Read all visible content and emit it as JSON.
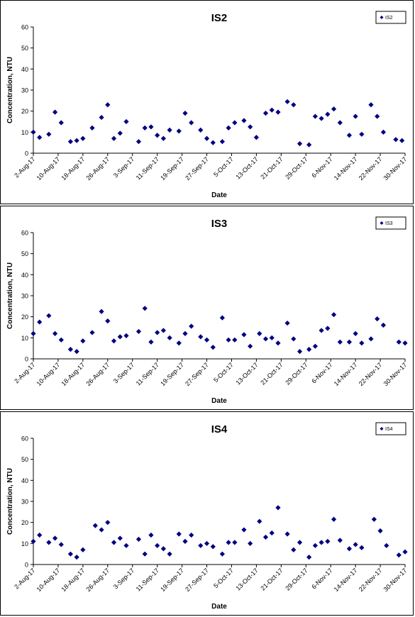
{
  "chart_data": [
    {
      "type": "scatter",
      "title": "IS2",
      "xlabel": "Date",
      "ylabel": "Concentration, NTU",
      "ylim": [
        0,
        60
      ],
      "yticks": [
        "0",
        "10",
        "20",
        "30",
        "40",
        "50",
        "60"
      ],
      "x_tick_labels": [
        "2-Aug-17",
        "10-Aug-17",
        "18-Aug-17",
        "26-Aug-17",
        "3-Sep-17",
        "11-Sep-17",
        "19-Sep-17",
        "27-Sep-17",
        "5-Oct-17",
        "13-Oct-17",
        "21-Oct-17",
        "29-Oct-17",
        "6-Nov-17",
        "14-Nov-17",
        "22-Nov-17",
        "30-Nov-17"
      ],
      "legend_position": "top-right",
      "grid": false,
      "marker": "diamond",
      "color": "#000080",
      "series": [
        {
          "name": "IS2",
          "points": [
            {
              "x": "2-Aug-17",
              "y": 10
            },
            {
              "x": "4-Aug-17",
              "y": 7.5
            },
            {
              "x": "7-Aug-17",
              "y": 9
            },
            {
              "x": "9-Aug-17",
              "y": 19.5
            },
            {
              "x": "11-Aug-17",
              "y": 14.5
            },
            {
              "x": "14-Aug-17",
              "y": 5.5
            },
            {
              "x": "16-Aug-17",
              "y": 6
            },
            {
              "x": "18-Aug-17",
              "y": 7
            },
            {
              "x": "21-Aug-17",
              "y": 12
            },
            {
              "x": "24-Aug-17",
              "y": 17
            },
            {
              "x": "26-Aug-17",
              "y": 23
            },
            {
              "x": "28-Aug-17",
              "y": 7
            },
            {
              "x": "30-Aug-17",
              "y": 9.5
            },
            {
              "x": "1-Sep-17",
              "y": 15
            },
            {
              "x": "5-Sep-17",
              "y": 5.5
            },
            {
              "x": "7-Sep-17",
              "y": 12
            },
            {
              "x": "9-Sep-17",
              "y": 12.5
            },
            {
              "x": "11-Sep-17",
              "y": 8.5
            },
            {
              "x": "13-Sep-17",
              "y": 7
            },
            {
              "x": "15-Sep-17",
              "y": 11
            },
            {
              "x": "18-Sep-17",
              "y": 10.5
            },
            {
              "x": "20-Sep-17",
              "y": 19
            },
            {
              "x": "22-Sep-17",
              "y": 14.5
            },
            {
              "x": "25-Sep-17",
              "y": 11
            },
            {
              "x": "27-Sep-17",
              "y": 7
            },
            {
              "x": "29-Sep-17",
              "y": 5
            },
            {
              "x": "2-Oct-17",
              "y": 5.5
            },
            {
              "x": "4-Oct-17",
              "y": 12
            },
            {
              "x": "6-Oct-17",
              "y": 14.5
            },
            {
              "x": "9-Oct-17",
              "y": 15.5
            },
            {
              "x": "11-Oct-17",
              "y": 12.5
            },
            {
              "x": "13-Oct-17",
              "y": 7.5
            },
            {
              "x": "16-Oct-17",
              "y": 19
            },
            {
              "x": "18-Oct-17",
              "y": 20.5
            },
            {
              "x": "20-Oct-17",
              "y": 19.5
            },
            {
              "x": "23-Oct-17",
              "y": 24.5
            },
            {
              "x": "25-Oct-17",
              "y": 23
            },
            {
              "x": "27-Oct-17",
              "y": 4.5
            },
            {
              "x": "30-Oct-17",
              "y": 4
            },
            {
              "x": "1-Nov-17",
              "y": 17.5
            },
            {
              "x": "3-Nov-17",
              "y": 16.5
            },
            {
              "x": "5-Nov-17",
              "y": 18.5
            },
            {
              "x": "7-Nov-17",
              "y": 21
            },
            {
              "x": "9-Nov-17",
              "y": 14.5
            },
            {
              "x": "12-Nov-17",
              "y": 8.5
            },
            {
              "x": "14-Nov-17",
              "y": 17.5
            },
            {
              "x": "16-Nov-17",
              "y": 9
            },
            {
              "x": "19-Nov-17",
              "y": 23
            },
            {
              "x": "21-Nov-17",
              "y": 17.5
            },
            {
              "x": "23-Nov-17",
              "y": 10
            },
            {
              "x": "27-Nov-17",
              "y": 6.5
            },
            {
              "x": "29-Nov-17",
              "y": 6
            }
          ]
        }
      ]
    },
    {
      "type": "scatter",
      "title": "IS3",
      "xlabel": "Date",
      "ylabel": "Concentration, NTU",
      "ylim": [
        0,
        60
      ],
      "yticks": [
        "0",
        "10",
        "20",
        "30",
        "40",
        "50",
        "60"
      ],
      "x_tick_labels": [
        "2-Aug-17",
        "10-Aug-17",
        "18-Aug-17",
        "26-Aug-17",
        "3-Sep-17",
        "11-Sep-17",
        "19-Sep-17",
        "27-Sep-17",
        "5-Oct-17",
        "13-Oct-17",
        "21-Oct-17",
        "29-Oct-17",
        "6-Nov-17",
        "14-Nov-17",
        "22-Nov-17",
        "30-Nov-17"
      ],
      "legend_position": "top-right",
      "grid": false,
      "marker": "diamond",
      "color": "#000080",
      "series": [
        {
          "name": "IS3",
          "points": [
            {
              "x": "2-Aug-17",
              "y": 12
            },
            {
              "x": "4-Aug-17",
              "y": 17.5
            },
            {
              "x": "7-Aug-17",
              "y": 20.5
            },
            {
              "x": "9-Aug-17",
              "y": 12
            },
            {
              "x": "11-Aug-17",
              "y": 9
            },
            {
              "x": "14-Aug-17",
              "y": 4.5
            },
            {
              "x": "16-Aug-17",
              "y": 3.5
            },
            {
              "x": "18-Aug-17",
              "y": 8.5
            },
            {
              "x": "21-Aug-17",
              "y": 12.5
            },
            {
              "x": "24-Aug-17",
              "y": 22.5
            },
            {
              "x": "26-Aug-17",
              "y": 18
            },
            {
              "x": "28-Aug-17",
              "y": 8.5
            },
            {
              "x": "30-Aug-17",
              "y": 10.5
            },
            {
              "x": "1-Sep-17",
              "y": 11
            },
            {
              "x": "5-Sep-17",
              "y": 13
            },
            {
              "x": "7-Sep-17",
              "y": 24
            },
            {
              "x": "9-Sep-17",
              "y": 8
            },
            {
              "x": "11-Sep-17",
              "y": 12.5
            },
            {
              "x": "13-Sep-17",
              "y": 13.5
            },
            {
              "x": "15-Sep-17",
              "y": 10
            },
            {
              "x": "18-Sep-17",
              "y": 7.5
            },
            {
              "x": "20-Sep-17",
              "y": 12
            },
            {
              "x": "22-Sep-17",
              "y": 15.5
            },
            {
              "x": "25-Sep-17",
              "y": 10.5
            },
            {
              "x": "27-Sep-17",
              "y": 9
            },
            {
              "x": "29-Sep-17",
              "y": 5.5
            },
            {
              "x": "2-Oct-17",
              "y": 19.5
            },
            {
              "x": "4-Oct-17",
              "y": 9
            },
            {
              "x": "6-Oct-17",
              "y": 9
            },
            {
              "x": "9-Oct-17",
              "y": 11.5
            },
            {
              "x": "11-Oct-17",
              "y": 6
            },
            {
              "x": "14-Oct-17",
              "y": 12
            },
            {
              "x": "16-Oct-17",
              "y": 9.5
            },
            {
              "x": "18-Oct-17",
              "y": 10
            },
            {
              "x": "20-Oct-17",
              "y": 7.5
            },
            {
              "x": "23-Oct-17",
              "y": 17
            },
            {
              "x": "25-Oct-17",
              "y": 9.5
            },
            {
              "x": "27-Oct-17",
              "y": 3.5
            },
            {
              "x": "30-Oct-17",
              "y": 4.5
            },
            {
              "x": "1-Nov-17",
              "y": 6
            },
            {
              "x": "3-Nov-17",
              "y": 13.5
            },
            {
              "x": "5-Nov-17",
              "y": 14.5
            },
            {
              "x": "7-Nov-17",
              "y": 21
            },
            {
              "x": "9-Nov-17",
              "y": 8
            },
            {
              "x": "12-Nov-17",
              "y": 8
            },
            {
              "x": "14-Nov-17",
              "y": 12
            },
            {
              "x": "16-Nov-17",
              "y": 7.5
            },
            {
              "x": "19-Nov-17",
              "y": 9.5
            },
            {
              "x": "21-Nov-17",
              "y": 19
            },
            {
              "x": "23-Nov-17",
              "y": 16
            },
            {
              "x": "28-Nov-17",
              "y": 8
            },
            {
              "x": "30-Nov-17",
              "y": 7.5
            }
          ]
        }
      ]
    },
    {
      "type": "scatter",
      "title": "IS4",
      "xlabel": "Date",
      "ylabel": "Concentration, NTU",
      "ylim": [
        0,
        60
      ],
      "yticks": [
        "0",
        "10",
        "20",
        "30",
        "40",
        "50",
        "60"
      ],
      "x_tick_labels": [
        "2-Aug-17",
        "10-Aug-17",
        "18-Aug-17",
        "26-Aug-17",
        "3-Sep-17",
        "11-Sep-17",
        "19-Sep-17",
        "27-Sep-17",
        "5-Oct-17",
        "13-Oct-17",
        "21-Oct-17",
        "29-Oct-17",
        "6-Nov-17",
        "14-Nov-17",
        "22-Nov-17",
        "30-Nov-17"
      ],
      "legend_position": "top-right",
      "grid": false,
      "marker": "diamond",
      "color": "#000080",
      "series": [
        {
          "name": "IS4",
          "points": [
            {
              "x": "2-Aug-17",
              "y": 11
            },
            {
              "x": "4-Aug-17",
              "y": 14
            },
            {
              "x": "7-Aug-17",
              "y": 10.5
            },
            {
              "x": "9-Aug-17",
              "y": 12.5
            },
            {
              "x": "11-Aug-17",
              "y": 9.5
            },
            {
              "x": "14-Aug-17",
              "y": 5
            },
            {
              "x": "16-Aug-17",
              "y": 3.5
            },
            {
              "x": "18-Aug-17",
              "y": 7
            },
            {
              "x": "22-Aug-17",
              "y": 18.5
            },
            {
              "x": "24-Aug-17",
              "y": 16.5
            },
            {
              "x": "26-Aug-17",
              "y": 20
            },
            {
              "x": "28-Aug-17",
              "y": 10.5
            },
            {
              "x": "30-Aug-17",
              "y": 12.5
            },
            {
              "x": "1-Sep-17",
              "y": 9
            },
            {
              "x": "5-Sep-17",
              "y": 12
            },
            {
              "x": "7-Sep-17",
              "y": 5
            },
            {
              "x": "9-Sep-17",
              "y": 14
            },
            {
              "x": "11-Sep-17",
              "y": 9
            },
            {
              "x": "13-Sep-17",
              "y": 7.5
            },
            {
              "x": "15-Sep-17",
              "y": 5
            },
            {
              "x": "18-Sep-17",
              "y": 14.5
            },
            {
              "x": "20-Sep-17",
              "y": 11
            },
            {
              "x": "22-Sep-17",
              "y": 14
            },
            {
              "x": "25-Sep-17",
              "y": 9
            },
            {
              "x": "27-Sep-17",
              "y": 10
            },
            {
              "x": "29-Sep-17",
              "y": 8.5
            },
            {
              "x": "2-Oct-17",
              "y": 5
            },
            {
              "x": "4-Oct-17",
              "y": 10.5
            },
            {
              "x": "6-Oct-17",
              "y": 10.5
            },
            {
              "x": "9-Oct-17",
              "y": 16.5
            },
            {
              "x": "11-Oct-17",
              "y": 10
            },
            {
              "x": "14-Oct-17",
              "y": 20.5
            },
            {
              "x": "16-Oct-17",
              "y": 13
            },
            {
              "x": "18-Oct-17",
              "y": 15
            },
            {
              "x": "20-Oct-17",
              "y": 27
            },
            {
              "x": "23-Oct-17",
              "y": 14.5
            },
            {
              "x": "25-Oct-17",
              "y": 7
            },
            {
              "x": "27-Oct-17",
              "y": 10.5
            },
            {
              "x": "30-Oct-17",
              "y": 3.5
            },
            {
              "x": "1-Nov-17",
              "y": 9
            },
            {
              "x": "3-Nov-17",
              "y": 10.5
            },
            {
              "x": "5-Nov-17",
              "y": 11
            },
            {
              "x": "7-Nov-17",
              "y": 21.5
            },
            {
              "x": "9-Nov-17",
              "y": 11.5
            },
            {
              "x": "12-Nov-17",
              "y": 7.5
            },
            {
              "x": "14-Nov-17",
              "y": 9.5
            },
            {
              "x": "16-Nov-17",
              "y": 8
            },
            {
              "x": "20-Nov-17",
              "y": 21.5
            },
            {
              "x": "22-Nov-17",
              "y": 16
            },
            {
              "x": "24-Nov-17",
              "y": 9
            },
            {
              "x": "28-Nov-17",
              "y": 4.5
            },
            {
              "x": "30-Nov-17",
              "y": 6
            }
          ]
        }
      ]
    }
  ]
}
